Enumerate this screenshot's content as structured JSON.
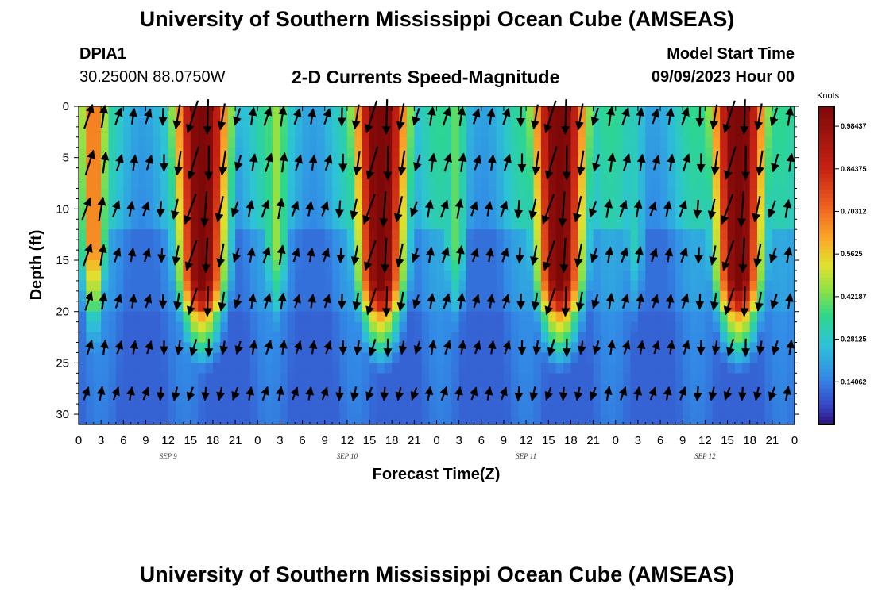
{
  "page": {
    "title": "University of Southern Mississippi Ocean Cube (AMSEAS)",
    "station_id": "DPIA1",
    "coordinates": "30.2500N  88.0750W",
    "chart_subtitle": "2-D Currents Speed-Magnitude",
    "model_start_label": "Model Start Time",
    "model_start_value": "09/09/2023 Hour 00",
    "footer_title": "University of Southern Mississippi Ocean Cube (AMSEAS)"
  },
  "chart_data": {
    "type": "heatmap",
    "title": "2-D Currents Speed-Magnitude",
    "xlabel": "Forecast Time(Z)",
    "ylabel": "Depth (ft)",
    "x_hours_range": [
      0,
      96
    ],
    "x_tick_labels": [
      "0",
      "3",
      "6",
      "9",
      "12",
      "15",
      "18",
      "21",
      "0",
      "3",
      "6",
      "9",
      "12",
      "15",
      "18",
      "21",
      "0",
      "3",
      "6",
      "9",
      "12",
      "15",
      "18",
      "21",
      "0",
      "3",
      "6",
      "9",
      "12",
      "15",
      "18",
      "21",
      "0"
    ],
    "date_labels": [
      {
        "text": "SEP 9",
        "hour": 12
      },
      {
        "text": "SEP 10",
        "hour": 36
      },
      {
        "text": "SEP 11",
        "hour": 60
      },
      {
        "text": "SEP 12",
        "hour": 84
      }
    ],
    "ylim": [
      0,
      31
    ],
    "y_ticks": [
      0,
      5,
      10,
      15,
      20,
      25,
      30
    ],
    "y_tick_labels": [
      "0",
      "5",
      "10",
      "15",
      "20",
      "25",
      "30"
    ],
    "colorbar": {
      "unit": "Knots",
      "range": [
        0,
        1.05
      ],
      "tick_values": [
        0.98437,
        0.84375,
        0.70312,
        0.5625,
        0.42187,
        0.28125,
        0.14062
      ],
      "tick_labels": [
        "0.98437",
        "0.84375",
        "0.70312",
        "0.5625",
        "0.42187",
        "0.28125",
        "0.14062"
      ]
    },
    "strong_current_peaks": [
      {
        "center_hour": 16.5,
        "peak_speed_knots": 0.98
      },
      {
        "center_hour": 40.5,
        "peak_speed_knots": 0.98
      },
      {
        "center_hour": 64.5,
        "peak_speed_knots": 0.98
      },
      {
        "center_hour": 88.5,
        "peak_speed_knots": 0.98
      }
    ],
    "secondary_peaks": [
      {
        "center_hour": 2.0,
        "peak_speed_knots": 0.7
      },
      {
        "center_hour": 26.5,
        "peak_speed_knots": 0.45
      },
      {
        "center_hour": 50.5,
        "peak_speed_knots": 0.4
      },
      {
        "center_hour": 74.5,
        "peak_speed_knots": 0.3
      }
    ],
    "vectors_note": "Direction arrows show current heading; long arrows pointing down-left in strong ebb bands, up-right in flood bands"
  }
}
